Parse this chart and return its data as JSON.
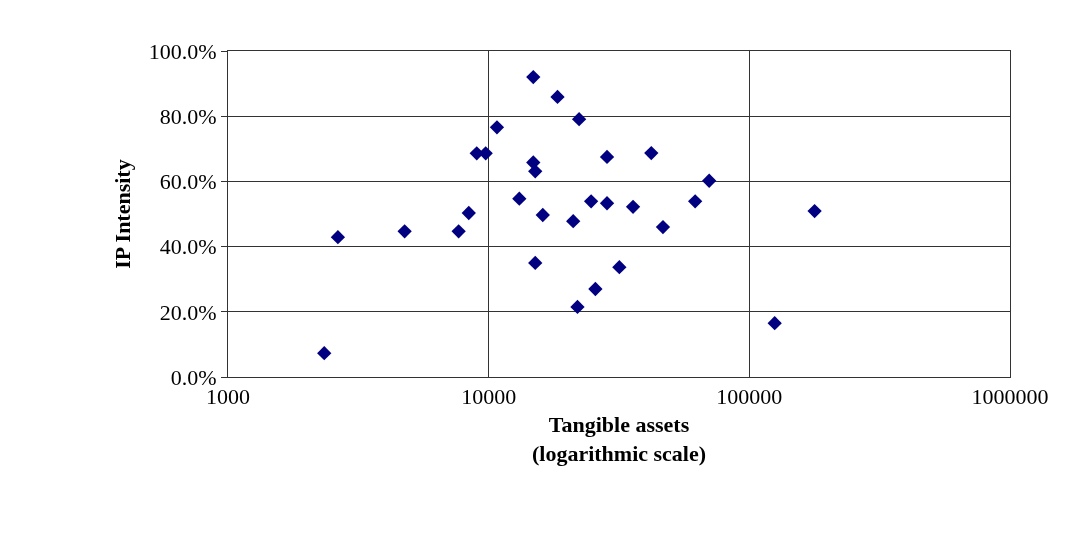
{
  "chart_data": {
    "type": "scatter",
    "xlabel": "Tangible assets\n(logarithmic scale)",
    "ylabel": "IP Intensity",
    "log": "x",
    "grid": true,
    "marker": "diamond",
    "xlim": [
      1000,
      1000000
    ],
    "xticks": [
      1000,
      10000,
      100000,
      1000000
    ],
    "ylim": [
      0,
      100
    ],
    "yticks": [
      {
        "value": 0,
        "label": "0.0%"
      },
      {
        "value": 20,
        "label": "20.0%"
      },
      {
        "value": 40,
        "label": "40.0%"
      },
      {
        "value": 60,
        "label": "60.0%"
      },
      {
        "value": 80,
        "label": "80.0%"
      },
      {
        "value": 100,
        "label": "100.0%"
      }
    ],
    "series": [
      {
        "color": "#000080",
        "x": [
          2340,
          2640,
          4760,
          7670,
          8390,
          9000,
          9740,
          10760,
          14830,
          18370,
          22230,
          14830,
          15090,
          28450,
          42060,
          70140,
          13110,
          16130,
          21100,
          24720,
          28450,
          35800,
          46630,
          61970,
          178000,
          125100,
          15090,
          21910,
          25670,
          31720
        ],
        "values": [
          7.3,
          42.9,
          44.7,
          44.7,
          50.3,
          68.6,
          68.6,
          76.6,
          92.0,
          85.9,
          79.1,
          65.8,
          63.1,
          67.5,
          68.7,
          60.2,
          54.7,
          49.7,
          47.8,
          53.9,
          53.3,
          52.2,
          46.0,
          53.9,
          50.9,
          16.5,
          35.0,
          21.5,
          27.0,
          33.7
        ]
      }
    ]
  }
}
